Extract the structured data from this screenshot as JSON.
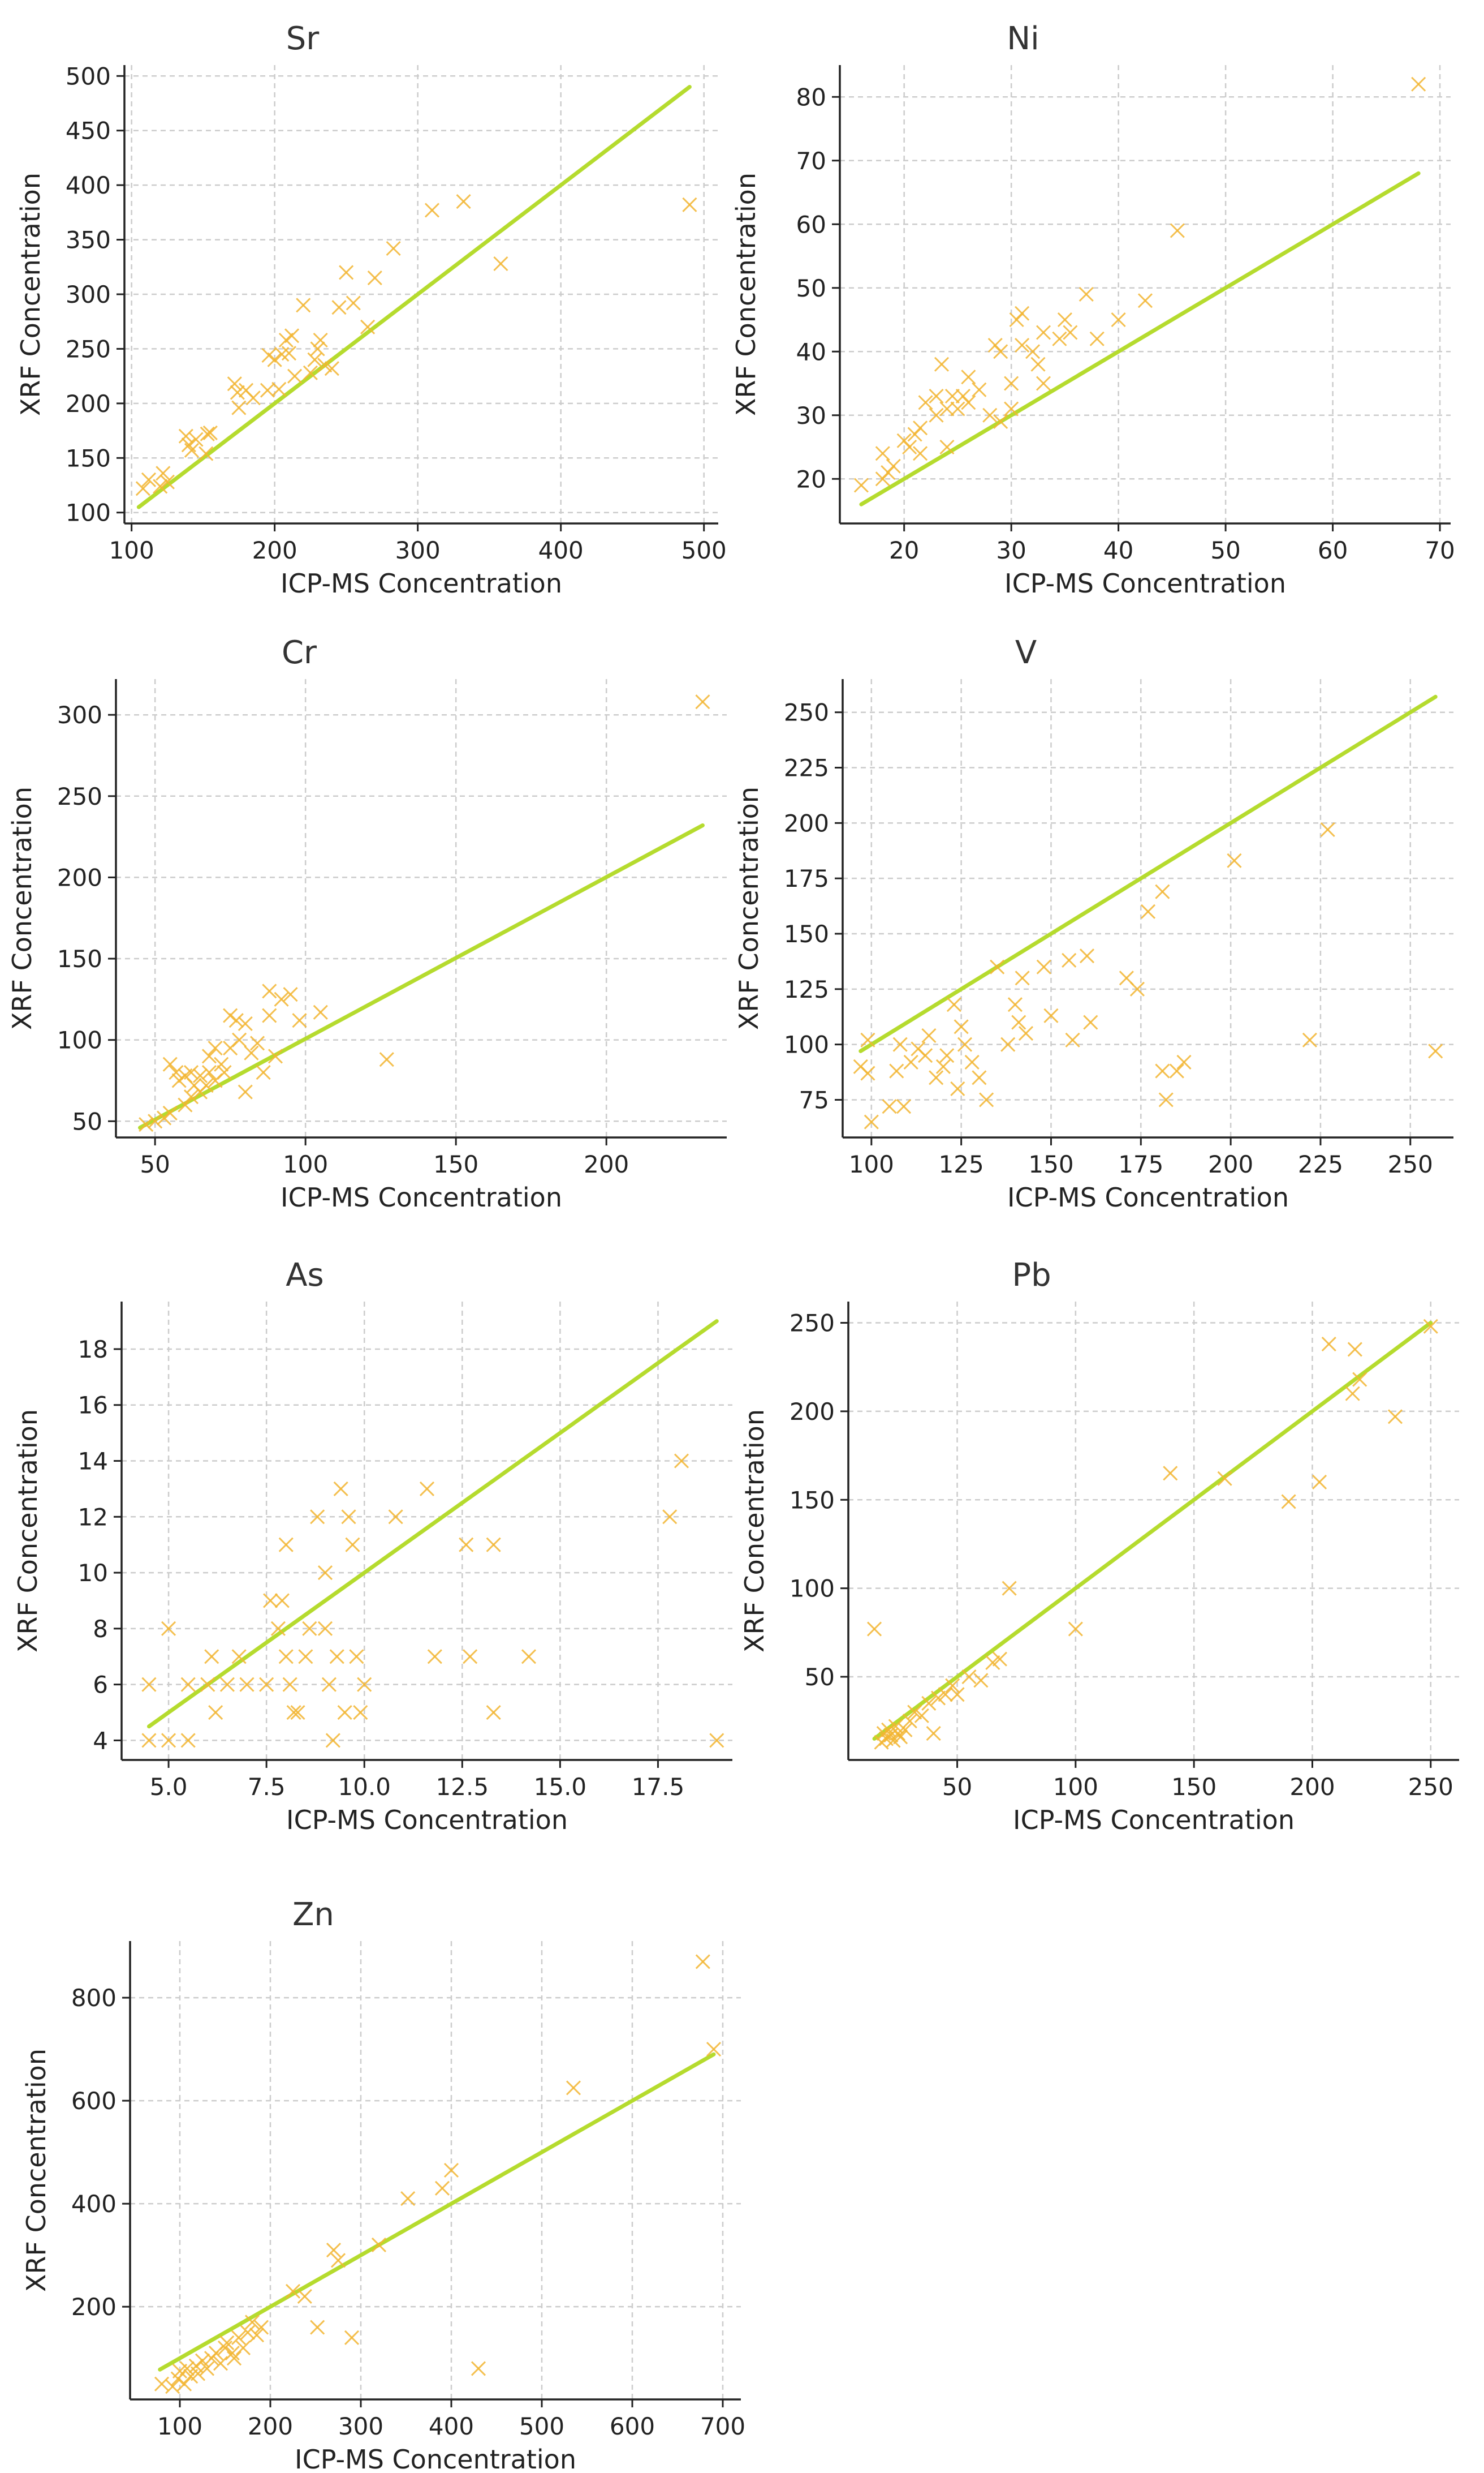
{
  "colors": {
    "points": "#F2B531",
    "line": "#B5DB2E",
    "grid": "#CCCCCC",
    "axis": "#222222",
    "title": "#333333"
  },
  "chart_data": [
    {
      "type": "scatter",
      "title": "Sr",
      "xlabel": "ICP-MS Concentration",
      "ylabel": "XRF Concentration",
      "xlim": [
        95,
        510
      ],
      "ylim": [
        90,
        510
      ],
      "xticks": [
        100,
        200,
        300,
        400,
        500
      ],
      "yticks": [
        100,
        150,
        200,
        250,
        300,
        350,
        400,
        450,
        500
      ],
      "fit_line": [
        [
          105,
          105
        ],
        [
          490,
          490
        ]
      ],
      "points": [
        [
          108,
          122
        ],
        [
          112,
          130
        ],
        [
          120,
          124
        ],
        [
          122,
          136
        ],
        [
          125,
          128
        ],
        [
          138,
          170
        ],
        [
          140,
          162
        ],
        [
          142,
          157
        ],
        [
          145,
          167
        ],
        [
          152,
          154
        ],
        [
          153,
          172
        ],
        [
          155,
          173
        ],
        [
          172,
          218
        ],
        [
          174,
          210
        ],
        [
          175,
          196
        ],
        [
          180,
          212
        ],
        [
          185,
          205
        ],
        [
          195,
          212
        ],
        [
          196,
          244
        ],
        [
          200,
          240
        ],
        [
          203,
          213
        ],
        [
          205,
          245
        ],
        [
          208,
          258
        ],
        [
          210,
          246
        ],
        [
          212,
          262
        ],
        [
          214,
          225
        ],
        [
          220,
          290
        ],
        [
          225,
          228
        ],
        [
          228,
          240
        ],
        [
          230,
          250
        ],
        [
          232,
          258
        ],
        [
          235,
          235
        ],
        [
          240,
          232
        ],
        [
          245,
          288
        ],
        [
          250,
          320
        ],
        [
          255,
          292
        ],
        [
          265,
          270
        ],
        [
          270,
          315
        ],
        [
          283,
          342
        ],
        [
          310,
          377
        ],
        [
          332,
          385
        ],
        [
          358,
          328
        ],
        [
          490,
          382
        ]
      ]
    },
    {
      "type": "scatter",
      "title": "Ni",
      "xlabel": "ICP-MS Concentration",
      "ylabel": "XRF Concentration",
      "xlim": [
        14,
        71
      ],
      "ylim": [
        13,
        85
      ],
      "xticks": [
        20,
        30,
        40,
        50,
        60,
        70
      ],
      "yticks": [
        20,
        30,
        40,
        50,
        60,
        70,
        80
      ],
      "fit_line": [
        [
          16,
          16
        ],
        [
          68,
          68
        ]
      ],
      "points": [
        [
          16,
          19
        ],
        [
          18,
          20
        ],
        [
          18.5,
          21
        ],
        [
          18,
          24
        ],
        [
          19,
          22
        ],
        [
          20,
          26
        ],
        [
          20.5,
          25
        ],
        [
          21,
          27
        ],
        [
          21.5,
          28
        ],
        [
          21.5,
          24
        ],
        [
          22,
          32
        ],
        [
          23,
          33
        ],
        [
          23,
          30
        ],
        [
          23.5,
          38
        ],
        [
          24,
          25
        ],
        [
          24,
          31
        ],
        [
          24.5,
          33
        ],
        [
          25,
          31
        ],
        [
          25.5,
          33
        ],
        [
          26,
          32
        ],
        [
          26,
          36
        ],
        [
          27,
          34
        ],
        [
          28,
          30
        ],
        [
          28.5,
          41
        ],
        [
          29,
          29
        ],
        [
          29,
          40
        ],
        [
          30,
          31
        ],
        [
          30,
          35
        ],
        [
          30.5,
          45
        ],
        [
          31,
          41
        ],
        [
          31,
          46
        ],
        [
          32,
          40
        ],
        [
          32.5,
          38
        ],
        [
          33,
          43
        ],
        [
          33,
          35
        ],
        [
          34.5,
          42
        ],
        [
          35,
          45
        ],
        [
          35.5,
          43
        ],
        [
          37,
          49
        ],
        [
          38,
          42
        ],
        [
          40,
          45
        ],
        [
          42.5,
          48
        ],
        [
          45.5,
          59
        ],
        [
          68,
          82
        ]
      ]
    },
    {
      "type": "scatter",
      "title": "Cr",
      "xlabel": "ICP-MS Concentration",
      "ylabel": "XRF Concentration",
      "xlim": [
        37,
        240
      ],
      "ylim": [
        40,
        322
      ],
      "xticks": [
        50,
        100,
        150,
        200
      ],
      "yticks": [
        50,
        100,
        150,
        200,
        250,
        300
      ],
      "fit_line": [
        [
          45,
          46
        ],
        [
          232,
          232
        ]
      ],
      "points": [
        [
          47,
          48
        ],
        [
          50,
          50
        ],
        [
          53,
          52
        ],
        [
          55,
          55
        ],
        [
          55,
          85
        ],
        [
          57,
          80
        ],
        [
          58,
          75
        ],
        [
          60,
          78
        ],
        [
          60,
          60
        ],
        [
          62,
          80
        ],
        [
          62,
          65
        ],
        [
          63,
          72
        ],
        [
          65,
          68
        ],
        [
          65,
          78
        ],
        [
          67,
          72
        ],
        [
          68,
          80
        ],
        [
          68,
          90
        ],
        [
          70,
          75
        ],
        [
          70,
          95
        ],
        [
          72,
          85
        ],
        [
          73,
          80
        ],
        [
          75,
          115
        ],
        [
          75,
          95
        ],
        [
          77,
          112
        ],
        [
          78,
          100
        ],
        [
          80,
          110
        ],
        [
          80,
          68
        ],
        [
          82,
          92
        ],
        [
          84,
          98
        ],
        [
          86,
          80
        ],
        [
          88,
          130
        ],
        [
          88,
          115
        ],
        [
          90,
          90
        ],
        [
          92,
          125
        ],
        [
          95,
          128
        ],
        [
          98,
          112
        ],
        [
          105,
          117
        ],
        [
          127,
          88
        ],
        [
          232,
          308
        ]
      ]
    },
    {
      "type": "scatter",
      "title": "V",
      "xlabel": "ICP-MS Concentration",
      "ylabel": "XRF Concentration",
      "xlim": [
        92,
        262
      ],
      "ylim": [
        58,
        265
      ],
      "xticks": [
        100,
        125,
        150,
        175,
        200,
        225,
        250
      ],
      "yticks": [
        75,
        100,
        125,
        150,
        175,
        200,
        225,
        250
      ],
      "fit_line": [
        [
          97,
          97
        ],
        [
          257,
          257
        ]
      ],
      "points": [
        [
          97,
          90
        ],
        [
          99,
          102
        ],
        [
          99,
          87
        ],
        [
          100,
          65
        ],
        [
          105,
          72
        ],
        [
          107,
          88
        ],
        [
          108,
          100
        ],
        [
          109,
          72
        ],
        [
          111,
          92
        ],
        [
          113,
          98
        ],
        [
          115,
          95
        ],
        [
          116,
          104
        ],
        [
          118,
          85
        ],
        [
          120,
          90
        ],
        [
          121,
          95
        ],
        [
          123,
          118
        ],
        [
          124,
          80
        ],
        [
          125,
          108
        ],
        [
          126,
          100
        ],
        [
          128,
          92
        ],
        [
          130,
          85
        ],
        [
          132,
          75
        ],
        [
          135,
          135
        ],
        [
          138,
          100
        ],
        [
          140,
          118
        ],
        [
          141,
          110
        ],
        [
          142,
          130
        ],
        [
          143,
          105
        ],
        [
          148,
          135
        ],
        [
          150,
          113
        ],
        [
          155,
          138
        ],
        [
          156,
          102
        ],
        [
          160,
          140
        ],
        [
          161,
          110
        ],
        [
          171,
          130
        ],
        [
          174,
          125
        ],
        [
          177,
          160
        ],
        [
          181,
          169
        ],
        [
          181,
          88
        ],
        [
          182,
          75
        ],
        [
          185,
          88
        ],
        [
          187,
          92
        ],
        [
          201,
          183
        ],
        [
          222,
          102
        ],
        [
          227,
          197
        ],
        [
          257,
          97
        ]
      ]
    },
    {
      "type": "scatter",
      "title": "As",
      "xlabel": "ICP-MS Concentration",
      "ylabel": "XRF Concentration",
      "xlim": [
        3.8,
        19.4
      ],
      "ylim": [
        3.3,
        19.7
      ],
      "xticks": [
        5.0,
        7.5,
        10.0,
        12.5,
        15.0,
        17.5
      ],
      "tick_labels_x": [
        "5.0",
        "7.5",
        "10.0",
        "12.5",
        "15.0",
        "17.5"
      ],
      "yticks": [
        4,
        6,
        8,
        10,
        12,
        14,
        16,
        18
      ],
      "fit_line": [
        [
          4.5,
          4.5
        ],
        [
          19,
          19
        ]
      ],
      "points": [
        [
          4.5,
          6
        ],
        [
          4.5,
          4
        ],
        [
          5,
          8
        ],
        [
          5,
          4
        ],
        [
          5.5,
          6
        ],
        [
          5.5,
          4
        ],
        [
          6,
          6
        ],
        [
          6.1,
          7
        ],
        [
          6.2,
          5
        ],
        [
          6.5,
          6
        ],
        [
          6.8,
          7
        ],
        [
          7,
          6
        ],
        [
          7.5,
          6
        ],
        [
          7.6,
          9
        ],
        [
          7.8,
          8
        ],
        [
          7.9,
          9
        ],
        [
          8,
          7
        ],
        [
          8,
          11
        ],
        [
          8.1,
          6
        ],
        [
          8.2,
          5
        ],
        [
          8.3,
          5
        ],
        [
          8.5,
          7
        ],
        [
          8.6,
          8
        ],
        [
          8.8,
          12
        ],
        [
          9,
          10
        ],
        [
          9,
          8
        ],
        [
          9.1,
          6
        ],
        [
          9.2,
          4
        ],
        [
          9.3,
          7
        ],
        [
          9.4,
          13
        ],
        [
          9.5,
          5
        ],
        [
          9.6,
          12
        ],
        [
          9.7,
          11
        ],
        [
          9.8,
          7
        ],
        [
          9.9,
          5
        ],
        [
          10,
          6
        ],
        [
          10.8,
          12
        ],
        [
          11.6,
          13
        ],
        [
          11.8,
          7
        ],
        [
          12.6,
          11
        ],
        [
          12.7,
          7
        ],
        [
          13.3,
          11
        ],
        [
          13.3,
          5
        ],
        [
          14.2,
          7
        ],
        [
          17.8,
          12
        ],
        [
          18.1,
          14
        ],
        [
          19,
          4
        ]
      ]
    },
    {
      "type": "scatter",
      "title": "Pb",
      "xlabel": "ICP-MS Concentration",
      "ylabel": "XRF Concentration",
      "xlim": [
        4,
        262
      ],
      "ylim": [
        3,
        262
      ],
      "xticks": [
        50,
        100,
        150,
        200,
        250
      ],
      "yticks": [
        50,
        100,
        150,
        200,
        250
      ],
      "fit_line": [
        [
          15,
          15
        ],
        [
          250,
          250
        ]
      ],
      "points": [
        [
          15,
          77
        ],
        [
          18,
          13
        ],
        [
          19,
          18
        ],
        [
          20,
          15
        ],
        [
          21,
          20
        ],
        [
          22,
          17
        ],
        [
          23,
          14
        ],
        [
          24,
          22
        ],
        [
          25,
          18
        ],
        [
          26,
          16
        ],
        [
          28,
          20
        ],
        [
          30,
          25
        ],
        [
          32,
          30
        ],
        [
          35,
          28
        ],
        [
          38,
          35
        ],
        [
          40,
          18
        ],
        [
          42,
          38
        ],
        [
          45,
          40
        ],
        [
          48,
          45
        ],
        [
          50,
          40
        ],
        [
          55,
          50
        ],
        [
          60,
          48
        ],
        [
          65,
          58
        ],
        [
          68,
          60
        ],
        [
          72,
          100
        ],
        [
          100,
          77
        ],
        [
          140,
          165
        ],
        [
          163,
          162
        ],
        [
          190,
          149
        ],
        [
          203,
          160
        ],
        [
          207,
          238
        ],
        [
          217,
          210
        ],
        [
          218,
          235
        ],
        [
          220,
          218
        ],
        [
          235,
          197
        ],
        [
          250,
          248
        ]
      ]
    },
    {
      "type": "scatter",
      "title": "Zn",
      "xlabel": "ICP-MS Concentration",
      "ylabel": "XRF Concentration",
      "xlim": [
        45,
        720
      ],
      "ylim": [
        20,
        910
      ],
      "xticks": [
        100,
        200,
        300,
        400,
        500,
        600,
        700
      ],
      "yticks": [
        200,
        400,
        600,
        800
      ],
      "fit_line": [
        [
          78,
          78
        ],
        [
          690,
          690
        ]
      ],
      "points": [
        [
          80,
          50
        ],
        [
          92,
          45
        ],
        [
          98,
          60
        ],
        [
          100,
          75
        ],
        [
          105,
          50
        ],
        [
          108,
          80
        ],
        [
          112,
          65
        ],
        [
          118,
          85
        ],
        [
          120,
          70
        ],
        [
          125,
          95
        ],
        [
          130,
          80
        ],
        [
          135,
          100
        ],
        [
          140,
          110
        ],
        [
          145,
          90
        ],
        [
          150,
          120
        ],
        [
          152,
          130
        ],
        [
          158,
          110
        ],
        [
          160,
          100
        ],
        [
          165,
          140
        ],
        [
          170,
          120
        ],
        [
          175,
          150
        ],
        [
          180,
          170
        ],
        [
          185,
          145
        ],
        [
          190,
          160
        ],
        [
          225,
          230
        ],
        [
          238,
          220
        ],
        [
          252,
          160
        ],
        [
          270,
          310
        ],
        [
          275,
          290
        ],
        [
          290,
          140
        ],
        [
          320,
          320
        ],
        [
          352,
          410
        ],
        [
          390,
          430
        ],
        [
          400,
          465
        ],
        [
          430,
          80
        ],
        [
          535,
          625
        ],
        [
          678,
          870
        ],
        [
          690,
          700
        ]
      ]
    }
  ]
}
